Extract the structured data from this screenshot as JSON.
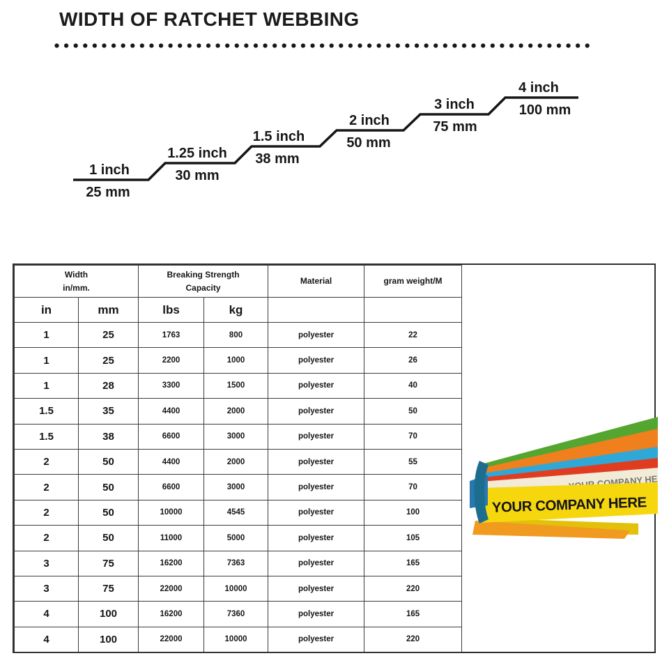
{
  "page": {
    "title": "WIDTH OF RATCHET WEBBING"
  },
  "diagram": {
    "steps": [
      {
        "inch": "1 inch",
        "mm": "25 mm"
      },
      {
        "inch": "1.25 inch",
        "mm": "30 mm"
      },
      {
        "inch": "1.5 inch",
        "mm": "38 mm"
      },
      {
        "inch": "2 inch",
        "mm": "50 mm"
      },
      {
        "inch": "3 inch",
        "mm": "75 mm"
      },
      {
        "inch": "4 inch",
        "mm": "100 mm"
      }
    ]
  },
  "table": {
    "header_groups": [
      {
        "line1": "Width",
        "line2": "in/mm."
      },
      {
        "line1": "Breaking Strength",
        "line2": "Capacity"
      },
      {
        "line1": "Material",
        "line2": ""
      },
      {
        "line1": "gram weight/M",
        "line2": ""
      }
    ],
    "sub_headers": [
      "in",
      "mm",
      "lbs",
      "kg",
      "",
      ""
    ],
    "rows": [
      [
        "1",
        "25",
        "1763",
        "800",
        "polyester",
        "22"
      ],
      [
        "1",
        "25",
        "2200",
        "1000",
        "polyester",
        "26"
      ],
      [
        "1",
        "28",
        "3300",
        "1500",
        "polyester",
        "40"
      ],
      [
        "1.5",
        "35",
        "4400",
        "2000",
        "polyester",
        "50"
      ],
      [
        "1.5",
        "38",
        "6600",
        "3000",
        "polyester",
        "70"
      ],
      [
        "2",
        "50",
        "4400",
        "2000",
        "polyester",
        "55"
      ],
      [
        "2",
        "50",
        "6600",
        "3000",
        "polyester",
        "70"
      ],
      [
        "2",
        "50",
        "10000",
        "4545",
        "polyester",
        "100"
      ],
      [
        "2",
        "50",
        "11000",
        "5000",
        "polyester",
        "105"
      ],
      [
        "3",
        "75",
        "16200",
        "7363",
        "polyester",
        "165"
      ],
      [
        "3",
        "75",
        "22000",
        "10000",
        "polyester",
        "220"
      ],
      [
        "4",
        "100",
        "16200",
        "7360",
        "polyester",
        "165"
      ],
      [
        "4",
        "100",
        "22000",
        "10000",
        "polyester",
        "220"
      ]
    ]
  },
  "photo": {
    "strap_text": "YOUR COMPANY HERE",
    "colors": {
      "green": "#55a630",
      "orange": "#f07f1e",
      "light_blue": "#2fa8d8",
      "red": "#e03c20",
      "cream": "#f1ebd8",
      "red_line": "#cf2f18",
      "yellow": "#f6d70e",
      "yellow_dark": "#e3c10a",
      "amber": "#f09a20",
      "teal": "#1d6e8e",
      "blue": "#2878b0"
    }
  }
}
